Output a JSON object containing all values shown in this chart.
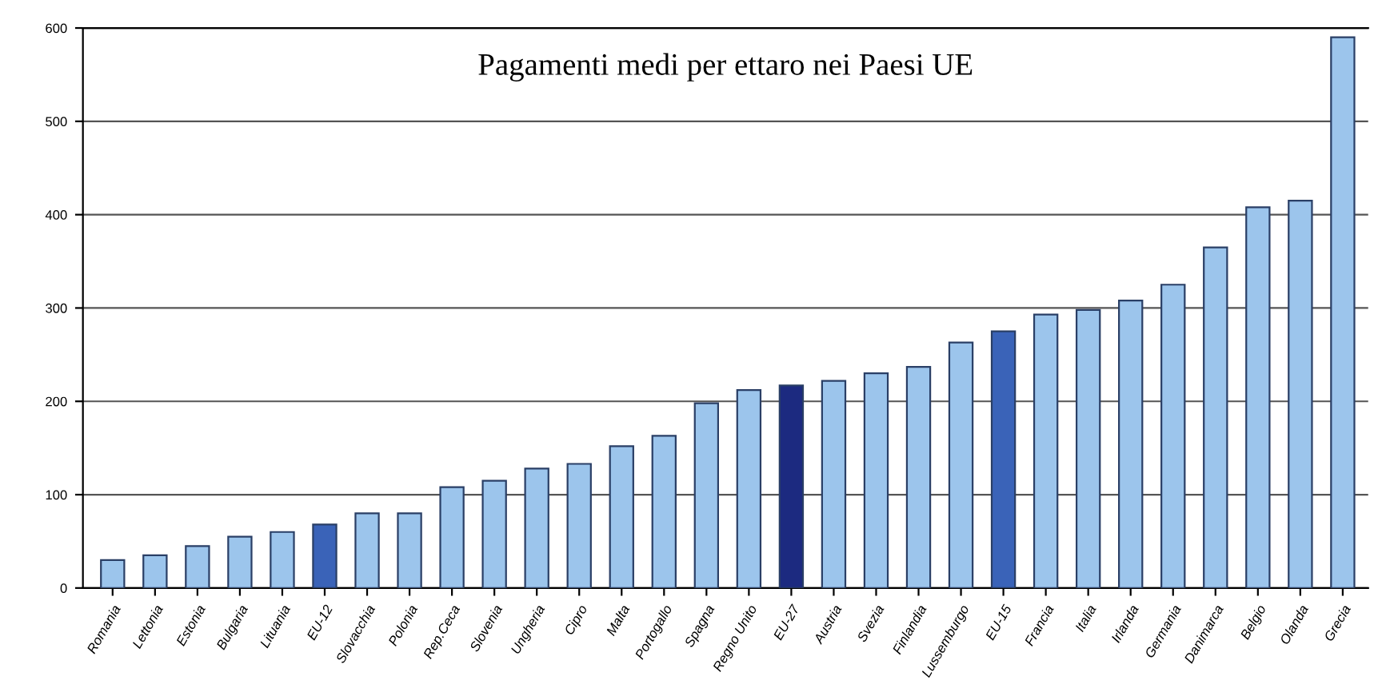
{
  "chart_data": {
    "type": "bar",
    "title": "Pagamenti medi per ettaro nei Paesi UE",
    "categories": [
      "Romania",
      "Lettonia",
      "Estonia",
      "Bulgaria",
      "Lituania",
      "EU-12",
      "Slovacchia",
      "Polonia",
      "Rep.Ceca",
      "Slovenia",
      "Ungheria",
      "Cipro",
      "Malta",
      "Portogallo",
      "Spagna",
      "Regno Unito",
      "EU-27",
      "Austria",
      "Svezia",
      "Finlandia",
      "Lussemburgo",
      "EU-15",
      "Francia",
      "Italia",
      "Irlanda",
      "Germania",
      "Danimarca",
      "Belgio",
      "Olanda",
      "Grecia"
    ],
    "values": [
      30,
      35,
      45,
      55,
      60,
      68,
      80,
      80,
      108,
      115,
      128,
      133,
      152,
      163,
      198,
      212,
      217,
      222,
      230,
      237,
      263,
      275,
      293,
      298,
      308,
      325,
      365,
      408,
      415,
      590
    ],
    "colors": [
      "#9cc5ec",
      "#9cc5ec",
      "#9cc5ec",
      "#9cc5ec",
      "#9cc5ec",
      "#3a63b8",
      "#9cc5ec",
      "#9cc5ec",
      "#9cc5ec",
      "#9cc5ec",
      "#9cc5ec",
      "#9cc5ec",
      "#9cc5ec",
      "#9cc5ec",
      "#9cc5ec",
      "#9cc5ec",
      "#1c2a80",
      "#9cc5ec",
      "#9cc5ec",
      "#9cc5ec",
      "#9cc5ec",
      "#3a63b8",
      "#9cc5ec",
      "#9cc5ec",
      "#9cc5ec",
      "#9cc5ec",
      "#9cc5ec",
      "#9cc5ec",
      "#9cc5ec",
      "#9cc5ec"
    ],
    "ylim": [
      0,
      600
    ],
    "yticks": [
      0,
      100,
      200,
      300,
      400,
      500,
      600
    ],
    "grid": "y"
  }
}
